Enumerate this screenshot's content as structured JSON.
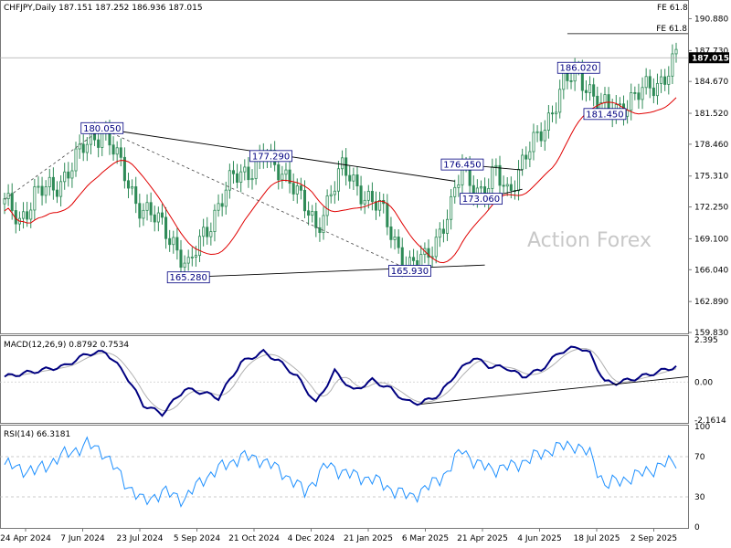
{
  "header": {
    "symbol_line": "CHFJPY,Daily  187.151 187.252 186.936 187.015",
    "fe_top": "FE 61.8"
  },
  "watermark": "Action Forex",
  "colors": {
    "candle": "#2e8b57",
    "ma": "#e00000",
    "macd": "#000080",
    "signal": "#b0b0b0",
    "rsi": "#1e90ff",
    "border": "#777777"
  },
  "chart_data": [
    {
      "type": "candlestick",
      "title": "CHFJPY,Daily",
      "ohlc_last": {
        "open": 187.151,
        "high": 187.252,
        "low": 186.936,
        "close": 187.015
      },
      "current_price_label": "187.015",
      "ylim": [
        159.83,
        192.55
      ],
      "y_ticks": [
        "190.880",
        "187.730",
        "184.670",
        "181.520",
        "178.460",
        "175.310",
        "172.250",
        "169.100",
        "166.040",
        "162.890",
        "159.830"
      ],
      "x_ticks": [
        "24 Apr 2024",
        "7 Jun 2024",
        "23 Jul 2024",
        "5 Sep 2024",
        "21 Oct 2024",
        "4 Dec 2024",
        "21 Jan 2025",
        "6 Mar 2025",
        "21 Apr 2025",
        "4 Jun 2025",
        "18 Jul 2025",
        "2 Sep 2025"
      ],
      "price_annotations": [
        {
          "label": "180.050",
          "bar": 26,
          "value": 180.05
        },
        {
          "label": "177.290",
          "bar": 71,
          "value": 177.29
        },
        {
          "label": "165.280",
          "bar": 49,
          "value": 165.28
        },
        {
          "label": "165.930",
          "bar": 108,
          "value": 165.93
        },
        {
          "label": "176.450",
          "bar": 122,
          "value": 176.45
        },
        {
          "label": "173.060",
          "bar": 127,
          "value": 173.06
        },
        {
          "label": "186.020",
          "bar": 153,
          "value": 186.02
        },
        {
          "label": "181.450",
          "bar": 160,
          "value": 181.45
        }
      ],
      "fe_label": "FE 61.8",
      "fe_level": 189.4,
      "moving_average": true,
      "watermark": "Action Forex",
      "ohlc_count": 180
    },
    {
      "type": "line",
      "title": "MACD(12,26,9) 0.8792 0.7534",
      "macd": 0.8792,
      "signal": 0.7534,
      "ylim": [
        -2.1614,
        2.395
      ],
      "y_ticks": [
        "2.395",
        "0.00",
        "-2.1614"
      ]
    },
    {
      "type": "line",
      "title": "RSI(14) 66.3181",
      "rsi": 66.3181,
      "ylim": [
        0,
        100
      ],
      "y_ticks": [
        "100",
        "70",
        "30",
        "0"
      ]
    }
  ]
}
